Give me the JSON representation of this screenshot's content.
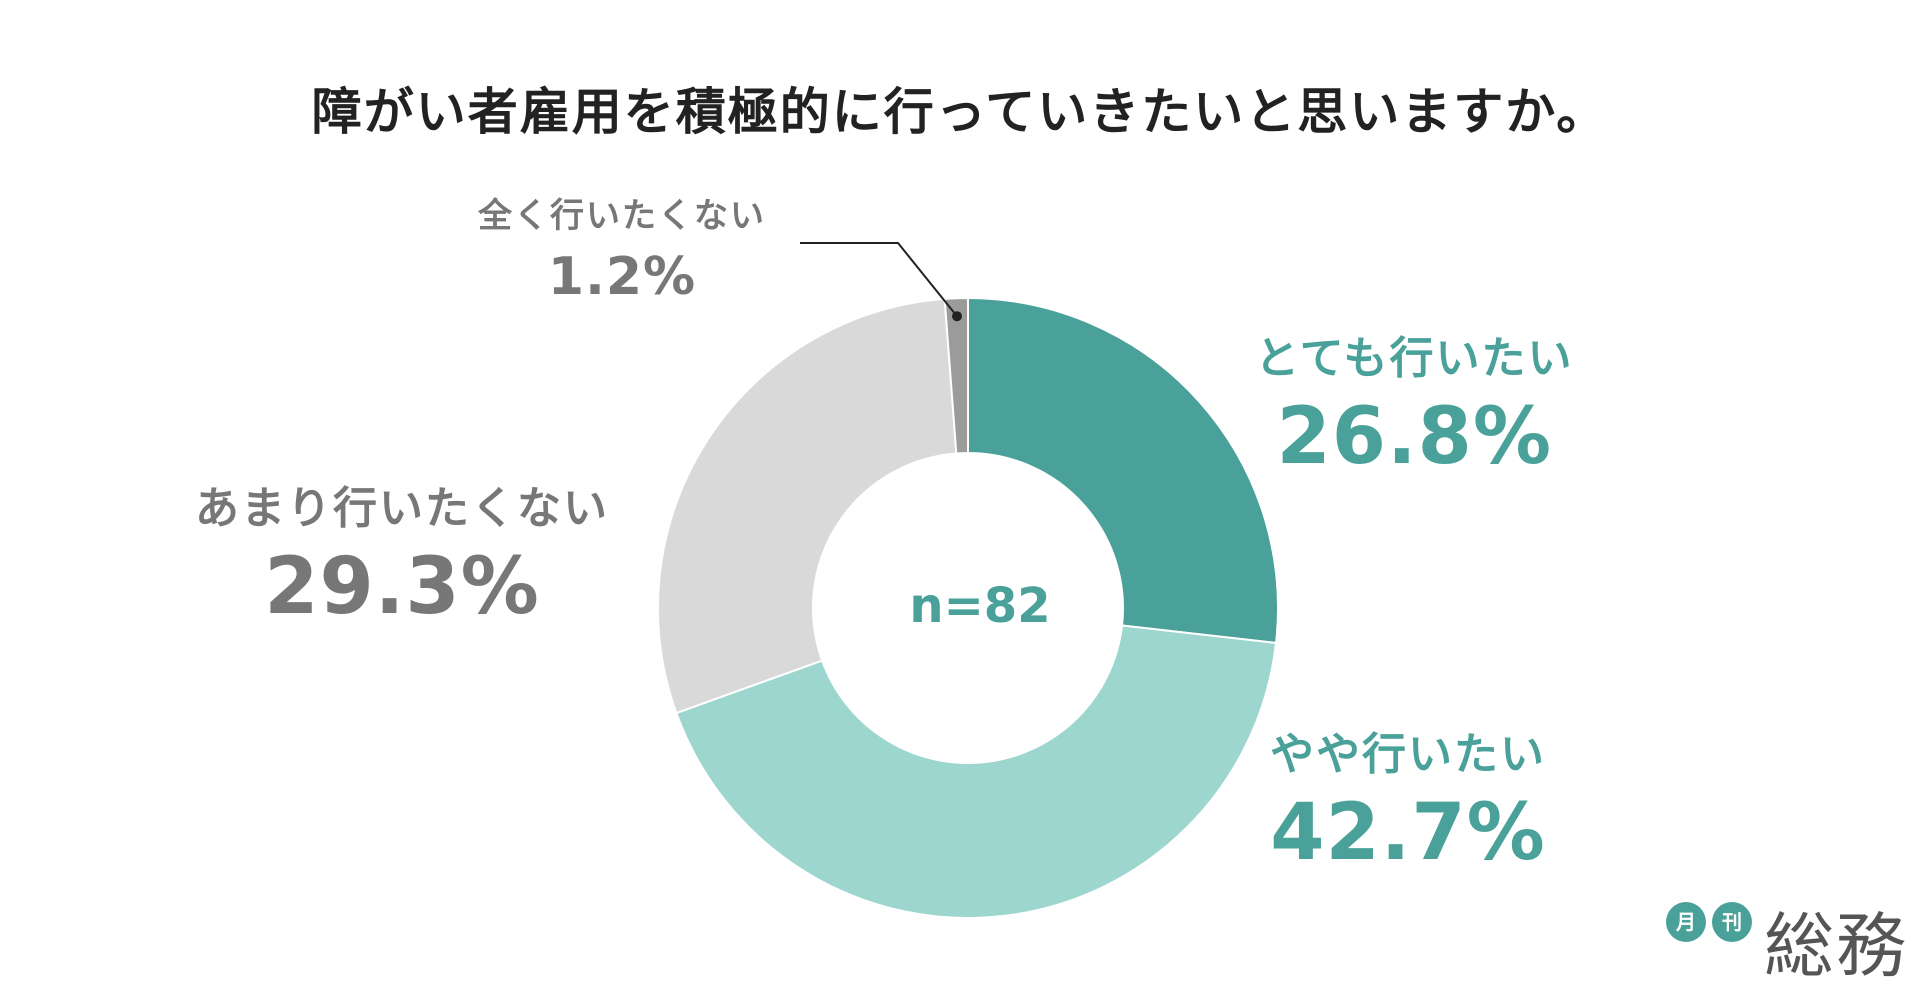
{
  "title": "障がい者雇用を積極的に行っていきたいと思いますか。",
  "chart_data": {
    "type": "pie",
    "title": "障がい者雇用を積極的に行っていきたいと思いますか。",
    "sample_label": "n=82",
    "slices": [
      {
        "label": "とても行いたい",
        "value": 26.8,
        "value_label": "26.8%",
        "color": "#4aa199"
      },
      {
        "label": "やや行いたい",
        "value": 42.7,
        "value_label": "42.7%",
        "color": "#9dd6ce"
      },
      {
        "label": "あまり行いたくない",
        "value": 29.3,
        "value_label": "29.3%",
        "color": "#d9d9d9"
      },
      {
        "label": "全く行いたくない",
        "value": 1.2,
        "value_label": "1.2%",
        "color": "#9b9b9b"
      }
    ],
    "label_colors": [
      "#4aa199",
      "#4aa199",
      "#777777",
      "#777777"
    ]
  },
  "logo": {
    "badge1": "月",
    "badge2": "刊",
    "name": "総務"
  }
}
